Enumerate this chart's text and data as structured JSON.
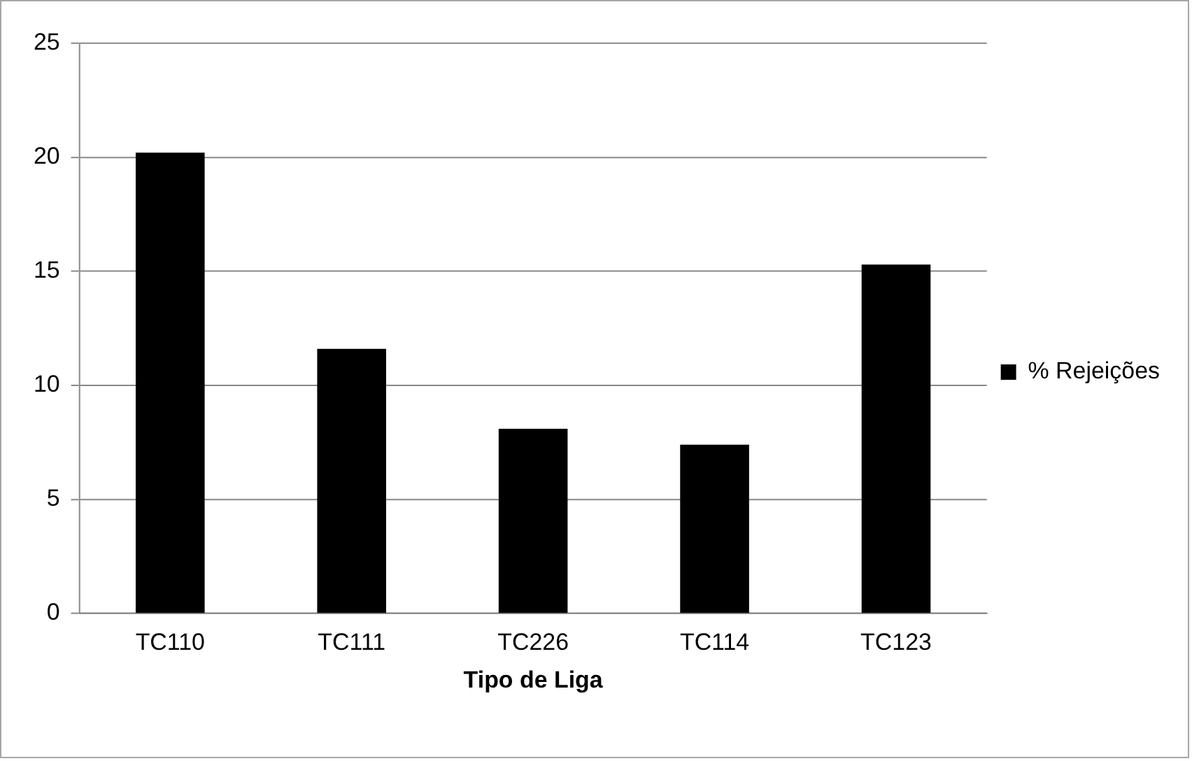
{
  "chart_data": {
    "type": "bar",
    "xlabel": "Tipo de Liga",
    "categories": [
      "TC110",
      "TC111",
      "TC226",
      "TC114",
      "TC123"
    ],
    "series": [
      {
        "name": "% Rejeições",
        "color": "#000000",
        "values": [
          20.2,
          11.6,
          8.1,
          7.4,
          15.3
        ]
      }
    ],
    "ylim": [
      0,
      25
    ],
    "yticks": [
      0,
      5,
      10,
      15,
      20,
      25
    ],
    "grid": "y",
    "legend": "right"
  }
}
